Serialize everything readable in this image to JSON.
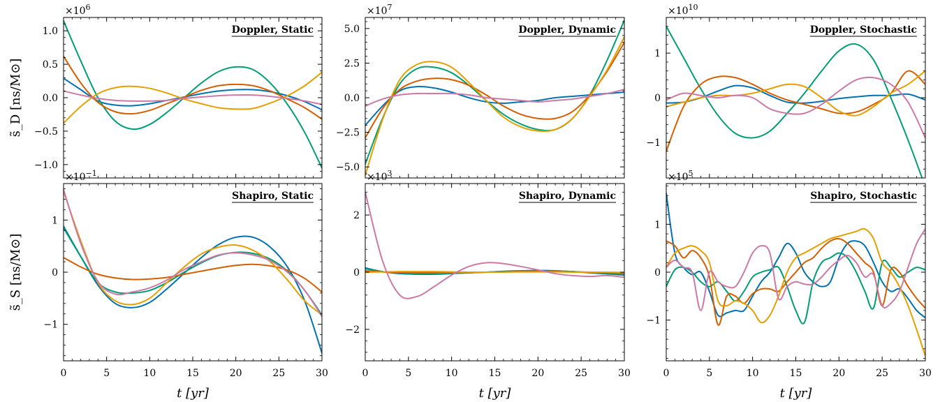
{
  "chart_data": [
    {
      "type": "line",
      "title": "Doppler, Static",
      "multiplier": "×10^6",
      "xlabel": "",
      "ylabel": "s̃_D [ns/M⊙]",
      "xlim": [
        0,
        30
      ],
      "ylim": [
        -1.2,
        1.2
      ],
      "xticks": [
        0,
        5,
        10,
        15,
        20,
        25,
        30
      ],
      "yticks": [
        -1.0,
        -0.5,
        0.0,
        0.5,
        1.0
      ],
      "ytick_labels": [
        "−1.0",
        "−0.5",
        "0.0",
        "0.5",
        "1.0"
      ],
      "x": [
        0,
        2,
        4,
        6,
        8,
        10,
        12,
        14,
        16,
        18,
        20,
        22,
        24,
        26,
        28,
        30
      ],
      "series": [
        {
          "color": "#0072B2",
          "values": [
            0.29,
            0.12,
            -0.05,
            -0.11,
            -0.12,
            -0.09,
            -0.04,
            0.01,
            0.06,
            0.1,
            0.12,
            0.12,
            0.09,
            0.03,
            -0.06,
            -0.18
          ]
        },
        {
          "color": "#009E73",
          "values": [
            1.15,
            0.55,
            0.0,
            -0.35,
            -0.47,
            -0.4,
            -0.22,
            0.0,
            0.22,
            0.39,
            0.46,
            0.42,
            0.22,
            -0.1,
            -0.52,
            -1.05
          ]
        },
        {
          "color": "#D55E00",
          "values": [
            0.62,
            0.22,
            -0.07,
            -0.21,
            -0.24,
            -0.19,
            -0.09,
            0.01,
            0.11,
            0.18,
            0.2,
            0.18,
            0.1,
            -0.02,
            -0.15,
            -0.32
          ]
        },
        {
          "color": "#E69F00",
          "values": [
            -0.38,
            -0.13,
            0.06,
            0.15,
            0.17,
            0.14,
            0.07,
            -0.02,
            -0.09,
            -0.15,
            -0.17,
            -0.16,
            -0.08,
            0.03,
            0.18,
            0.38
          ]
        },
        {
          "color": "#CC79A7",
          "values": [
            0.1,
            0.04,
            -0.01,
            -0.04,
            -0.05,
            -0.05,
            -0.04,
            -0.01,
            0.01,
            0.03,
            0.04,
            0.04,
            0.02,
            -0.01,
            -0.05,
            -0.1
          ]
        }
      ]
    },
    {
      "type": "line",
      "title": "Doppler, Dynamic",
      "multiplier": "×10^7",
      "xlabel": "",
      "ylabel": "",
      "xlim": [
        0,
        30
      ],
      "ylim": [
        -5.8,
        5.8
      ],
      "xticks": [
        0,
        5,
        10,
        15,
        20,
        25,
        30
      ],
      "yticks": [
        -5.0,
        -2.5,
        0.0,
        2.5,
        5.0
      ],
      "ytick_labels": [
        "−5.0",
        "−2.5",
        "0.0",
        "2.5",
        "5.0"
      ],
      "x": [
        0,
        2,
        4,
        6,
        8,
        10,
        12,
        14,
        16,
        18,
        20,
        22,
        24,
        26,
        28,
        30
      ],
      "series": [
        {
          "color": "#0072B2",
          "values": [
            -2.0,
            -0.6,
            0.5,
            0.8,
            0.7,
            0.4,
            0.0,
            -0.3,
            -0.4,
            -0.3,
            -0.2,
            0.0,
            0.1,
            0.2,
            0.3,
            0.4
          ]
        },
        {
          "color": "#009E73",
          "values": [
            -4.8,
            -1.5,
            1.0,
            2.1,
            2.2,
            1.8,
            0.9,
            -0.2,
            -1.2,
            -1.9,
            -2.3,
            -2.3,
            -1.5,
            0.2,
            2.7,
            5.6
          ]
        },
        {
          "color": "#D55E00",
          "values": [
            -2.9,
            -0.8,
            0.6,
            1.2,
            1.4,
            1.3,
            0.9,
            0.2,
            -0.6,
            -1.2,
            -1.5,
            -1.5,
            -1.0,
            0.2,
            1.9,
            4.0
          ]
        },
        {
          "color": "#E69F00",
          "values": [
            -5.6,
            -1.6,
            1.3,
            2.4,
            2.6,
            2.2,
            1.1,
            -0.2,
            -1.4,
            -2.1,
            -2.4,
            -2.3,
            -1.5,
            0.1,
            2.0,
            4.4
          ]
        },
        {
          "color": "#CC79A7",
          "values": [
            -0.6,
            -0.1,
            0.2,
            0.3,
            0.3,
            0.3,
            0.2,
            0.0,
            -0.1,
            -0.2,
            -0.3,
            -0.2,
            -0.1,
            0.1,
            0.3,
            0.6
          ]
        }
      ]
    },
    {
      "type": "line",
      "title": "Doppler, Stochastic",
      "multiplier": "×10^10",
      "xlabel": "",
      "ylabel": "",
      "xlim": [
        0,
        30
      ],
      "ylim": [
        -1.8,
        1.8
      ],
      "xticks": [
        0,
        5,
        10,
        15,
        20,
        25,
        30
      ],
      "yticks": [
        -1,
        0,
        1
      ],
      "ytick_labels": [
        "−1",
        "0",
        "1"
      ],
      "x": [
        0,
        2,
        4,
        6,
        8,
        10,
        12,
        14,
        16,
        18,
        20,
        22,
        24,
        26,
        28,
        30
      ],
      "series": [
        {
          "color": "#0072B2",
          "values": [
            -0.12,
            -0.1,
            0.0,
            0.15,
            0.27,
            0.22,
            0.05,
            -0.1,
            -0.12,
            -0.08,
            -0.02,
            0.02,
            0.05,
            0.05,
            0.08,
            -0.05
          ]
        },
        {
          "color": "#009E73",
          "values": [
            1.6,
            0.9,
            0.2,
            -0.4,
            -0.8,
            -0.9,
            -0.75,
            -0.35,
            0.1,
            0.6,
            1.05,
            1.2,
            0.85,
            0.0,
            -0.95,
            -2.0
          ]
        },
        {
          "color": "#D55E00",
          "values": [
            -1.2,
            -0.2,
            0.3,
            0.47,
            0.45,
            0.3,
            0.1,
            -0.05,
            -0.15,
            -0.25,
            -0.35,
            -0.32,
            -0.15,
            0.1,
            0.6,
            0.3
          ]
        },
        {
          "color": "#E69F00",
          "values": [
            -0.2,
            -0.1,
            0.0,
            0.05,
            0.05,
            0.1,
            0.2,
            0.3,
            0.25,
            0.0,
            -0.3,
            -0.4,
            -0.2,
            0.1,
            0.3,
            0.6
          ]
        },
        {
          "color": "#CC79A7",
          "values": [
            -0.05,
            0.1,
            0.05,
            0.0,
            0.05,
            0.0,
            -0.25,
            -0.35,
            -0.35,
            -0.15,
            0.15,
            0.4,
            0.45,
            0.3,
            -0.1,
            -0.9
          ]
        }
      ]
    },
    {
      "type": "line",
      "title": "Shapiro, Static",
      "multiplier": "×10^−1",
      "xlabel": "t [yr]",
      "ylabel": "s̃_S [ns/M⊙]",
      "xlim": [
        0,
        30
      ],
      "ylim": [
        -1.7,
        1.7
      ],
      "xticks": [
        0,
        5,
        10,
        15,
        20,
        25,
        30
      ],
      "yticks": [
        -1,
        0,
        1
      ],
      "ytick_labels": [
        "−1",
        "0",
        "1"
      ],
      "x": [
        0,
        2,
        4,
        6,
        8,
        10,
        12,
        14,
        16,
        18,
        20,
        22,
        24,
        26,
        28,
        30
      ],
      "series": [
        {
          "color": "#0072B2",
          "values": [
            0.88,
            0.3,
            -0.25,
            -0.6,
            -0.68,
            -0.58,
            -0.32,
            -0.02,
            0.28,
            0.53,
            0.67,
            0.67,
            0.48,
            0.1,
            -0.55,
            -1.55
          ]
        },
        {
          "color": "#009E73",
          "values": [
            0.85,
            0.3,
            -0.2,
            -0.38,
            -0.4,
            -0.35,
            -0.2,
            0.0,
            0.18,
            0.32,
            0.38,
            0.36,
            0.25,
            0.02,
            -0.35,
            -0.82
          ]
        },
        {
          "color": "#D55E00",
          "values": [
            0.28,
            0.1,
            -0.04,
            -0.11,
            -0.14,
            -0.13,
            -0.1,
            -0.04,
            0.02,
            0.08,
            0.13,
            0.15,
            0.12,
            0.04,
            -0.12,
            -0.38
          ]
        },
        {
          "color": "#E69F00",
          "values": [
            1.55,
            0.6,
            -0.2,
            -0.55,
            -0.62,
            -0.5,
            -0.2,
            0.1,
            0.35,
            0.48,
            0.52,
            0.42,
            0.2,
            -0.15,
            -0.55,
            -0.82
          ]
        },
        {
          "color": "#CC79A7",
          "values": [
            1.58,
            0.55,
            -0.18,
            -0.42,
            -0.38,
            -0.3,
            -0.15,
            0.05,
            0.2,
            0.33,
            0.37,
            0.33,
            0.22,
            0.0,
            -0.35,
            -0.85
          ]
        }
      ]
    },
    {
      "type": "line",
      "title": "Shapiro, Dynamic",
      "multiplier": "×10^3",
      "xlabel": "t [yr]",
      "ylabel": "",
      "xlim": [
        0,
        30
      ],
      "ylim": [
        -3.1,
        3.1
      ],
      "xticks": [
        0,
        5,
        10,
        15,
        20,
        25,
        30
      ],
      "yticks": [
        -2,
        0,
        2
      ],
      "ytick_labels": [
        "−2",
        "0",
        "2"
      ],
      "x": [
        0,
        2,
        4,
        6,
        8,
        10,
        12,
        14,
        16,
        18,
        20,
        22,
        24,
        26,
        28,
        30
      ],
      "series": [
        {
          "color": "#0072B2",
          "values": [
            0.15,
            0.02,
            -0.05,
            -0.07,
            -0.07,
            -0.05,
            -0.02,
            0.0,
            0.03,
            0.05,
            0.06,
            0.05,
            0.02,
            -0.02,
            -0.06,
            -0.1
          ]
        },
        {
          "color": "#009E73",
          "values": [
            0.12,
            0.02,
            -0.03,
            -0.05,
            -0.05,
            -0.04,
            -0.02,
            0.0,
            0.02,
            0.04,
            0.05,
            0.04,
            0.02,
            -0.01,
            -0.04,
            -0.08
          ]
        },
        {
          "color": "#D55E00",
          "values": [
            0.05,
            0.01,
            -0.01,
            -0.02,
            -0.02,
            -0.02,
            -0.01,
            0.0,
            0.01,
            0.02,
            0.02,
            0.02,
            0.01,
            0.0,
            -0.02,
            -0.04
          ]
        },
        {
          "color": "#E69F00",
          "values": [
            0.0,
            0.01,
            0.02,
            0.02,
            0.02,
            0.01,
            0.0,
            0.0,
            0.0,
            0.01,
            0.01,
            0.01,
            0.0,
            0.0,
            0.0,
            -0.01
          ]
        },
        {
          "color": "#CC79A7",
          "values": [
            2.8,
            0.4,
            -0.8,
            -0.85,
            -0.5,
            -0.1,
            0.2,
            0.33,
            0.3,
            0.2,
            0.08,
            -0.05,
            -0.12,
            -0.15,
            -0.12,
            -0.18
          ]
        }
      ]
    },
    {
      "type": "line",
      "title": "Shapiro, Stochastic",
      "multiplier": "×10^5",
      "xlabel": "t [yr]",
      "ylabel": "",
      "xlim": [
        0,
        30
      ],
      "ylim": [
        -1.85,
        1.85
      ],
      "xticks": [
        0,
        5,
        10,
        15,
        20,
        25,
        30
      ],
      "yticks": [
        -1,
        0,
        1
      ],
      "ytick_labels": [
        "−1",
        "0",
        "1"
      ],
      "x": [
        0,
        1,
        2,
        3,
        4,
        5,
        6,
        7,
        8,
        9,
        10,
        11,
        12,
        13,
        14,
        15,
        16,
        17,
        18,
        19,
        20,
        21,
        22,
        23,
        24,
        25,
        26,
        27,
        28,
        29,
        30
      ],
      "series": [
        {
          "color": "#0072B2",
          "values": [
            1.65,
            0.4,
            0.1,
            -0.05,
            0.0,
            -0.4,
            -0.9,
            -0.85,
            -0.8,
            -0.8,
            -0.5,
            -0.2,
            0.0,
            0.3,
            0.6,
            0.4,
            0.0,
            -0.2,
            -0.3,
            -0.2,
            0.3,
            0.6,
            0.65,
            0.55,
            0.2,
            -0.2,
            -0.4,
            -0.35,
            -0.55,
            -0.8,
            -0.95
          ]
        },
        {
          "color": "#009E73",
          "values": [
            -0.3,
            0.05,
            0.1,
            0.0,
            -0.2,
            -0.3,
            -0.2,
            -0.4,
            -0.6,
            -0.4,
            -0.1,
            0.0,
            0.05,
            0.1,
            -0.3,
            -0.8,
            -1.05,
            -0.2,
            0.2,
            0.3,
            0.4,
            0.3,
            0.0,
            -0.4,
            -0.75,
            0.2,
            0.1,
            -0.1,
            0.0,
            0.1,
            0.05
          ]
        },
        {
          "color": "#D55E00",
          "values": [
            0.65,
            0.55,
            0.3,
            0.45,
            0.3,
            -0.1,
            -1.1,
            -0.5,
            -0.5,
            -0.65,
            -0.45,
            -0.35,
            -0.35,
            -0.4,
            -0.2,
            0.0,
            0.2,
            0.3,
            0.5,
            0.65,
            0.7,
            0.6,
            0.4,
            0.2,
            0.0,
            -0.7,
            0.05,
            0.0,
            -0.3,
            -0.55,
            -0.75
          ]
        },
        {
          "color": "#E69F00",
          "values": [
            0.1,
            0.4,
            0.5,
            0.55,
            0.45,
            0.2,
            -0.6,
            -0.7,
            -0.6,
            -0.65,
            -0.8,
            -1.05,
            -0.9,
            -0.5,
            0.0,
            0.3,
            0.4,
            0.5,
            0.6,
            0.7,
            0.75,
            0.8,
            0.85,
            0.9,
            0.7,
            0.2,
            0.0,
            -0.3,
            -0.7,
            -1.2,
            -1.75
          ]
        },
        {
          "color": "#CC79A7",
          "values": [
            0.1,
            0.25,
            0.1,
            0.0,
            -0.8,
            0.0,
            -0.2,
            -0.3,
            -0.3,
            0.0,
            0.4,
            0.55,
            0.4,
            -0.55,
            -0.3,
            -0.2,
            -0.25,
            -0.25,
            -0.1,
            0.1,
            0.25,
            0.35,
            0.2,
            -0.1,
            -0.05,
            -0.7,
            -0.65,
            -0.4,
            0.1,
            0.6,
            0.9
          ]
        }
      ]
    }
  ]
}
